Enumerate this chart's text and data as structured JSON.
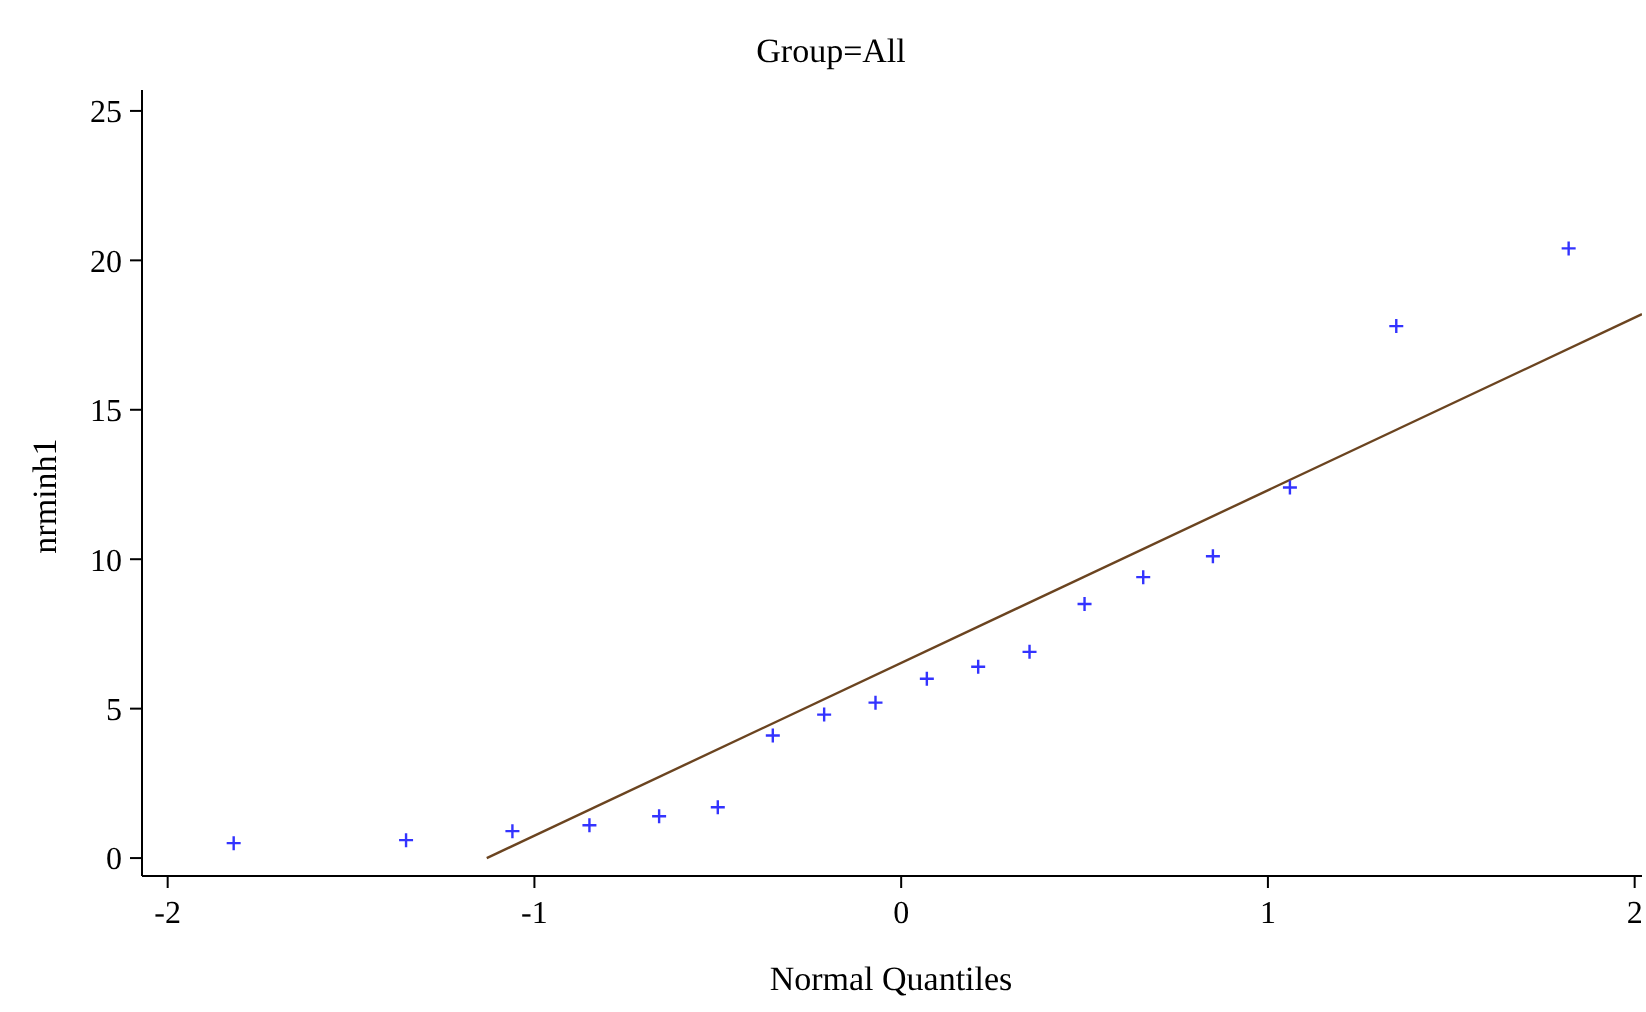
{
  "chart_data": {
    "type": "scatter",
    "subtitle": "Group=All",
    "xlabel": "Normal Quantiles",
    "ylabel": "nrminh1",
    "xlim": [
      -2.07,
      2.02
    ],
    "xticks": [
      -2,
      -1,
      0,
      1,
      2
    ],
    "ylim": [
      -0.6,
      25.7
    ],
    "yticks": [
      0,
      5,
      10,
      15,
      20,
      25
    ],
    "grid": false,
    "legend": false,
    "marker": "cross",
    "series": [
      {
        "color": "#3333ff",
        "x": [
          -1.82,
          -1.35,
          -1.06,
          -0.85,
          -0.66,
          -0.5,
          -0.35,
          -0.21,
          -0.07,
          0.07,
          0.21,
          0.35,
          0.5,
          0.66,
          0.85,
          1.06,
          1.35,
          1.82
        ],
        "values": [
          0.5,
          0.6,
          0.9,
          1.1,
          1.4,
          1.7,
          4.1,
          4.8,
          5.2,
          6.0,
          6.4,
          6.9,
          8.5,
          9.4,
          10.1,
          12.4,
          17.8,
          20.4
        ]
      },
      {
        "type": "line",
        "color": "#6b4420",
        "marker": "none",
        "x": [
          -1.13,
          2.02
        ],
        "values": [
          0,
          18.2
        ]
      }
    ]
  }
}
